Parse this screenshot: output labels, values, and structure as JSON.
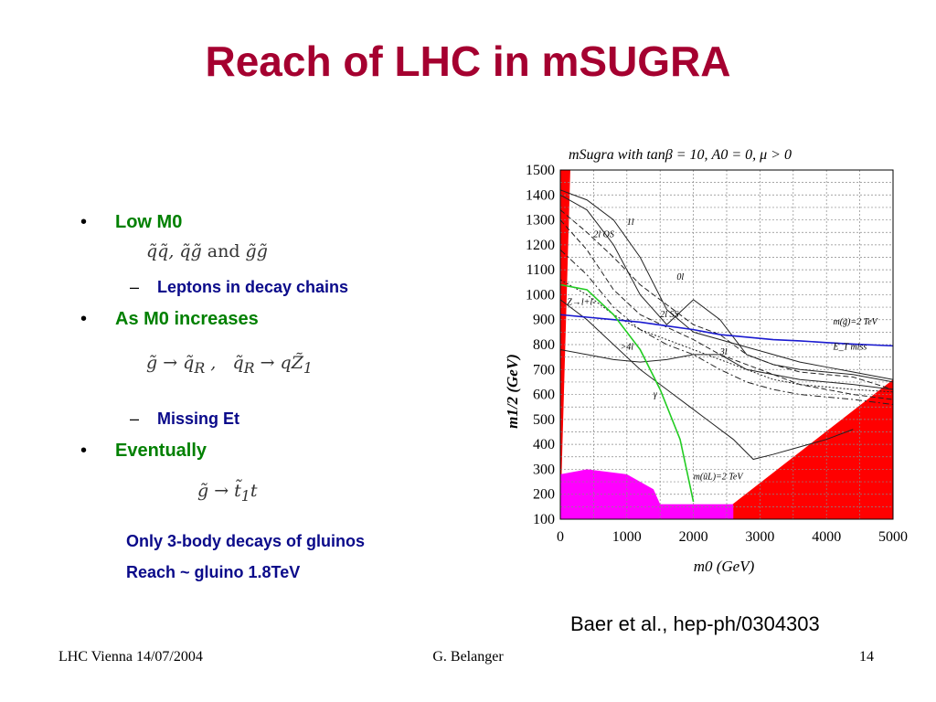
{
  "slide": {
    "title": "Reach of LHC in mSUGRA",
    "bullets": [
      {
        "label": "Low M0"
      },
      {
        "label": "As M0 increases"
      },
      {
        "label": "Eventually"
      }
    ],
    "subbullets": [
      "Leptons in decay chains",
      "Missing Et"
    ],
    "notes": [
      "Only 3-body decays of gluinos",
      "Reach ~ gluino 1.8TeV"
    ],
    "citation": "Baer et al., hep-ph/0304303"
  },
  "footer": {
    "left": "LHC Vienna 14/07/2004",
    "center": "G. Belanger",
    "right": "14"
  },
  "chart_data": {
    "type": "line",
    "title": "mSugra with tanβ = 10, A0 = 0, μ > 0",
    "xlabel": "m0 (GeV)",
    "ylabel": "m1/2 (GeV)",
    "xlim": [
      0,
      5000
    ],
    "ylim": [
      100,
      1500
    ],
    "xticks": [
      0,
      1000,
      2000,
      3000,
      4000,
      5000
    ],
    "yticks": [
      100,
      200,
      300,
      400,
      500,
      600,
      700,
      800,
      900,
      1000,
      1100,
      1200,
      1300,
      1400,
      1500
    ],
    "grid": true,
    "annotations": [
      "1l",
      "2l OS",
      "0l",
      "Z→l+l-",
      "2l SS",
      ">4l",
      "3l",
      "γ",
      "m(g̃)=2 TeV",
      "E_T miss",
      "m(ũL)=2 TeV"
    ],
    "series": [
      {
        "style": "solid",
        "x": [
          0,
          400,
          800,
          1200,
          1600,
          2000,
          2400,
          2800,
          3200,
          3600,
          4000,
          4400,
          5000
        ],
        "y": [
          1420,
          1380,
          1300,
          1150,
          940,
          850,
          820,
          790,
          760,
          730,
          710,
          690,
          660
        ]
      },
      {
        "style": "solid",
        "x": [
          0,
          400,
          800,
          1200,
          1600,
          2000,
          2400,
          2800,
          3200,
          3600,
          4000,
          4400,
          5000
        ],
        "y": [
          1400,
          1340,
          1200,
          1000,
          880,
          980,
          900,
          760,
          720,
          700,
          690,
          680,
          650
        ]
      },
      {
        "style": "solid",
        "x": [
          0,
          400,
          800,
          1200,
          1600,
          2000,
          2200,
          2600,
          2900,
          3200,
          3600,
          4000,
          4400
        ],
        "y": [
          980,
          900,
          800,
          700,
          620,
          540,
          500,
          420,
          340,
          360,
          390,
          420,
          460
        ]
      },
      {
        "style": "dashed",
        "x": [
          0,
          400,
          800,
          1200,
          1600,
          2000,
          2400,
          2800,
          3200,
          3600,
          4000,
          4400,
          5000
        ],
        "y": [
          1340,
          1250,
          1150,
          1040,
          960,
          880,
          840,
          760,
          720,
          690,
          680,
          670,
          620
        ]
      },
      {
        "style": "dashed",
        "x": [
          0,
          400,
          800,
          1200,
          1600,
          2000,
          2400,
          2800,
          3200,
          3600,
          4000,
          4400,
          5000
        ],
        "y": [
          1300,
          1180,
          1020,
          920,
          870,
          820,
          760,
          720,
          680,
          640,
          620,
          600,
          580
        ]
      },
      {
        "style": "dashdot",
        "x": [
          0,
          400,
          800,
          1200,
          1600,
          2000,
          2400,
          2800,
          3200,
          3600,
          4000,
          4400,
          5000
        ],
        "y": [
          1180,
          1080,
          950,
          860,
          800,
          760,
          700,
          650,
          620,
          600,
          590,
          580,
          560
        ]
      },
      {
        "style": "dotted",
        "x": [
          0,
          400,
          800,
          1200,
          1600,
          2000,
          2400,
          2800,
          3200,
          3600,
          4000,
          4400,
          5000
        ],
        "y": [
          1060,
          1000,
          920,
          860,
          820,
          780,
          740,
          700,
          660,
          640,
          630,
          620,
          610
        ]
      },
      {
        "style": "solid",
        "x": [
          0,
          400,
          800,
          1200,
          1600,
          2000,
          2400,
          2800,
          3200,
          3600,
          4000,
          4400,
          5000
        ],
        "y": [
          780,
          760,
          740,
          730,
          740,
          760,
          760,
          700,
          680,
          660,
          650,
          640,
          620
        ]
      },
      {
        "name": "m(g̃)=2 TeV",
        "color": "#1a1ad0",
        "style": "solid",
        "x": [
          0,
          400,
          800,
          1200,
          1600,
          2000,
          2400,
          2800,
          3200,
          3600,
          4000,
          4400,
          5000
        ],
        "y": [
          920,
          910,
          900,
          890,
          875,
          860,
          840,
          830,
          820,
          815,
          808,
          802,
          795
        ]
      },
      {
        "name": "m(ũL)=2 TeV",
        "color": "#22cc22",
        "style": "solid",
        "x": [
          0,
          400,
          800,
          1200,
          1500,
          1800,
          2000
        ],
        "y": [
          1040,
          1020,
          920,
          780,
          620,
          420,
          170
        ]
      }
    ],
    "excluded_regions": [
      {
        "color": "#ff0000",
        "x": [
          0,
          150,
          0
        ],
        "y": [
          100,
          1500,
          1500
        ]
      },
      {
        "color": "#ff0000",
        "x": [
          2300,
          5000,
          5000
        ],
        "y": [
          100,
          660,
          100
        ]
      },
      {
        "color": "#ff00ff",
        "x": [
          0,
          0,
          400,
          1000,
          1400,
          1500,
          2600,
          2600
        ],
        "y": [
          100,
          280,
          300,
          280,
          220,
          160,
          160,
          100
        ]
      }
    ]
  }
}
